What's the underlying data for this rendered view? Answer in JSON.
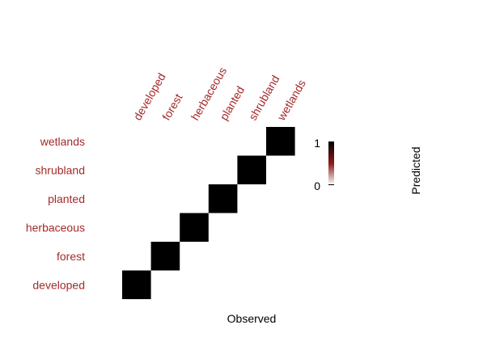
{
  "chart_data": {
    "type": "heatmap",
    "x_categories": [
      "developed",
      "forest",
      "herbaceous",
      "planted",
      "shrubland",
      "wetlands"
    ],
    "y_categories": [
      "developed",
      "forest",
      "herbaceous",
      "planted",
      "shrubland",
      "wetlands"
    ],
    "values": [
      [
        1,
        0,
        0,
        0,
        0,
        0
      ],
      [
        0,
        1,
        0,
        0,
        0,
        0
      ],
      [
        0,
        0,
        1,
        0,
        0,
        0
      ],
      [
        0,
        0,
        0,
        1,
        0,
        0
      ],
      [
        0,
        0,
        0,
        0,
        1,
        0
      ],
      [
        0,
        0,
        0,
        0,
        0,
        1
      ]
    ],
    "xlabel": "Observed",
    "ylabel": "Predicted",
    "color_range": [
      0,
      1
    ],
    "legend": {
      "ticks": [
        "1",
        "0"
      ],
      "colors": [
        "#000000",
        "#8b1a1a",
        "#ffffff"
      ],
      "placement": "right"
    },
    "label_color": "#a52a2a",
    "cell_color": "#000000"
  }
}
